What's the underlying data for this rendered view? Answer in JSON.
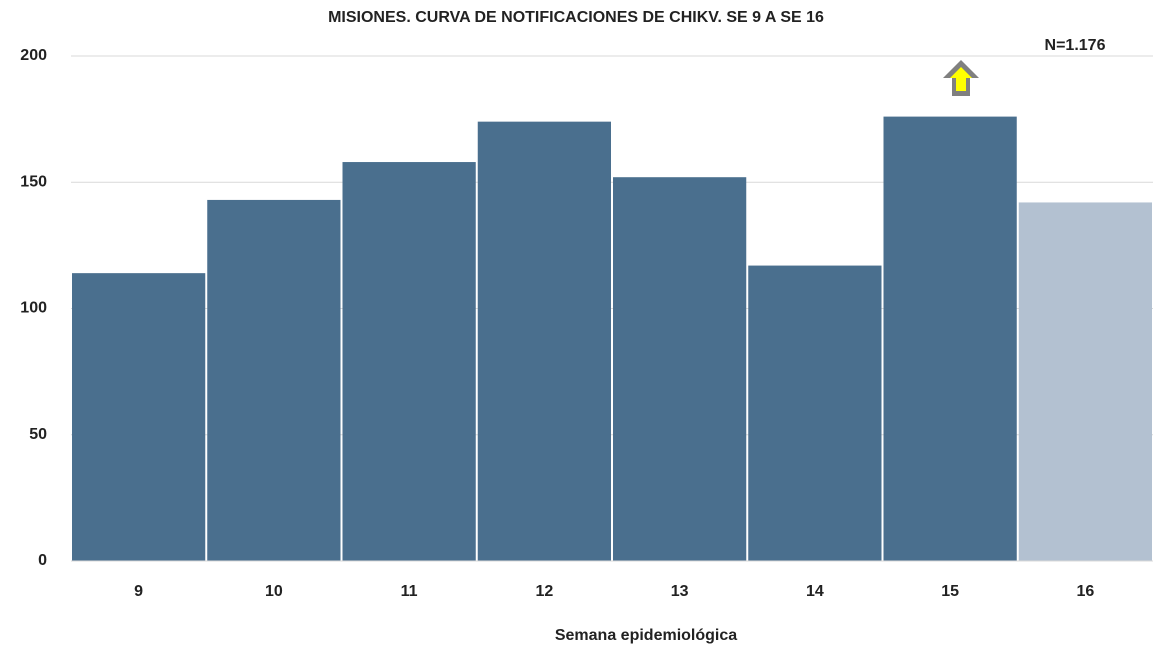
{
  "chart_data": {
    "type": "bar",
    "title": "MISIONES. CURVA DE NOTIFICACIONES DE CHIKV. SE 9 A SE 16",
    "annotation": "N=1.176",
    "x_label": "Semana epidemiológica",
    "categories": [
      "9",
      "10",
      "11",
      "12",
      "13",
      "14",
      "15",
      "16"
    ],
    "values": [
      114,
      143,
      158,
      174,
      152,
      117,
      176,
      142
    ],
    "colors": [
      "#4a6f8e",
      "#4a6f8e",
      "#4a6f8e",
      "#4a6f8e",
      "#4a6f8e",
      "#4a6f8e",
      "#4a6f8e",
      "#b3c1d1"
    ],
    "ylim": [
      0,
      200
    ],
    "yticks": [
      0,
      50,
      100,
      150,
      200
    ],
    "grid": true
  }
}
